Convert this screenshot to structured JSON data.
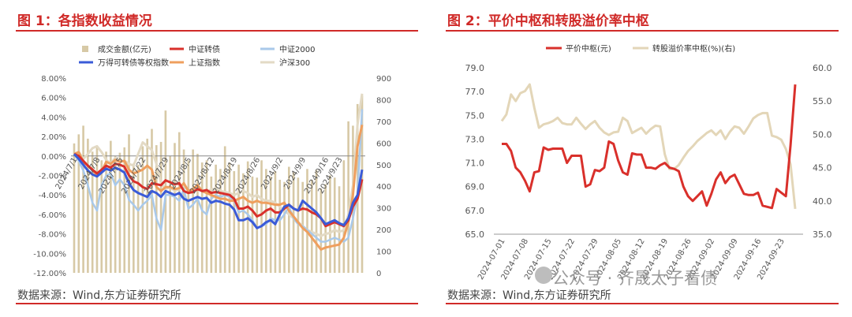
{
  "watermark": "公众号 · 齐晟太子看债",
  "panels": [
    {
      "title": "图 1：各指数收益情况",
      "source": "数据来源：Wind,东方证券研究所"
    },
    {
      "title": "图 2：平价中枢和转股溢价率中枢",
      "source": "数据来源：Wind,东方证券研究所"
    }
  ],
  "chart_data": [
    {
      "type": "bar+line",
      "title": "图 1：各指数收益情况",
      "y_left_ticks": [
        "8.00%",
        "6.00%",
        "4.00%",
        "2.00%",
        "0.00%",
        "-2.00%",
        "-4.00%",
        "-6.00%",
        "-8.00%",
        "-10.00%",
        "-12.00%"
      ],
      "y_right_ticks": [
        "900",
        "800",
        "700",
        "600",
        "500",
        "400",
        "300",
        "200",
        "100",
        "0"
      ],
      "ylim_left": [
        -12,
        8
      ],
      "ylim_right": [
        0,
        900
      ],
      "x_tick_labels": [
        "2024/7/1",
        "2024/7/8",
        "2024/7/15",
        "2024/7/22",
        "2024/7/29",
        "2024/8/5",
        "2024/8/12",
        "2024/8/19",
        "2024/8/26",
        "2024/9/2",
        "2024/9/9",
        "2024/9/16",
        "2024/9/23"
      ],
      "dates": [
        "7/1",
        "7/2",
        "7/3",
        "7/4",
        "7/5",
        "7/8",
        "7/9",
        "7/10",
        "7/11",
        "7/12",
        "7/15",
        "7/16",
        "7/17",
        "7/18",
        "7/19",
        "7/22",
        "7/23",
        "7/24",
        "7/25",
        "7/26",
        "7/29",
        "7/30",
        "7/31",
        "8/1",
        "8/2",
        "8/5",
        "8/6",
        "8/7",
        "8/8",
        "8/9",
        "8/12",
        "8/13",
        "8/14",
        "8/15",
        "8/16",
        "8/19",
        "8/20",
        "8/21",
        "8/22",
        "8/23",
        "8/26",
        "8/27",
        "8/28",
        "8/29",
        "8/30",
        "9/2",
        "9/3",
        "9/4",
        "9/5",
        "9/6",
        "9/9",
        "9/10",
        "9/11",
        "9/12",
        "9/13",
        "9/18",
        "9/19",
        "9/20",
        "9/23",
        "9/24",
        "9/25",
        "9/26",
        "9/27",
        "9/30"
      ],
      "bars": {
        "name": "成交金额(亿元)",
        "values": [
          598,
          640,
          680,
          620,
          560,
          580,
          520,
          560,
          610,
          540,
          555,
          580,
          640,
          505,
          500,
          585,
          620,
          665,
          590,
          605,
          750,
          540,
          600,
          650,
          570,
          520,
          570,
          550,
          510,
          520,
          445,
          500,
          480,
          585,
          510,
          470,
          500,
          460,
          515,
          445,
          440,
          520,
          480,
          445,
          470,
          430,
          420,
          490,
          465,
          440,
          420,
          480,
          430,
          475,
          390,
          410,
          450,
          440,
          400,
          520,
          700,
          680,
          780,
          820
        ]
      },
      "series": [
        {
          "name": "中证转债",
          "axis": "left",
          "values": [
            0.2,
            0.0,
            -0.5,
            -1.0,
            -1.4,
            -1.8,
            -1.4,
            -1.0,
            -1.2,
            -0.8,
            -0.9,
            -1.1,
            -2.0,
            -2.6,
            -2.8,
            -3.2,
            -3.4,
            -2.8,
            -2.9,
            -3.0,
            -2.5,
            -2.7,
            -2.9,
            -2.8,
            -3.6,
            -3.8,
            -3.7,
            -3.4,
            -3.6,
            -3.5,
            -3.8,
            -3.7,
            -3.8,
            -3.9,
            -4.0,
            -4.4,
            -5.4,
            -5.4,
            -5.2,
            -5.6,
            -6.2,
            -6.0,
            -5.6,
            -5.4,
            -5.8,
            -5.8,
            -5.4,
            -5.0,
            -5.4,
            -5.6,
            -5.4,
            -5.5,
            -5.8,
            -6.0,
            -6.4,
            -7.2,
            -7.0,
            -6.8,
            -7.0,
            -7.2,
            -6.6,
            -5.2,
            -4.4,
            -2.4
          ]
        },
        {
          "name": "中证2000",
          "axis": "left",
          "values": [
            0.2,
            -0.5,
            -1.5,
            -3.0,
            -4.8,
            -5.6,
            -3.0,
            -2.0,
            -1.8,
            -3.0,
            -2.4,
            -3.0,
            -4.5,
            -5.0,
            -5.6,
            -5.0,
            -4.6,
            -4.0,
            -6.4,
            -7.6,
            -4.0,
            -4.0,
            -4.2,
            -4.6,
            -3.4,
            -5.4,
            -5.0,
            -4.4,
            -5.6,
            -6.0,
            -4.4,
            -4.0,
            -4.2,
            -4.0,
            -4.2,
            -4.6,
            -5.8,
            -5.6,
            -6.0,
            -6.6,
            -7.4,
            -7.2,
            -7.0,
            -6.4,
            -6.6,
            -6.6,
            -6.0,
            -5.2,
            -6.4,
            -7.0,
            -7.2,
            -7.6,
            -8.0,
            -8.4,
            -8.8,
            -8.8,
            -8.6,
            -8.4,
            -8.6,
            -8.8,
            -8.4,
            -6.4,
            -4.0,
            4.8
          ]
        },
        {
          "name": "万得可转债等权指数",
          "axis": "left",
          "values": [
            0.2,
            -0.3,
            -0.9,
            -1.5,
            -1.9,
            -2.1,
            -1.7,
            -1.3,
            -1.5,
            -1.2,
            -1.4,
            -1.7,
            -2.8,
            -3.5,
            -3.8,
            -4.0,
            -4.2,
            -3.6,
            -3.8,
            -4.2,
            -3.6,
            -3.8,
            -4.0,
            -3.8,
            -4.4,
            -4.6,
            -4.4,
            -4.2,
            -4.4,
            -4.3,
            -4.8,
            -4.6,
            -4.7,
            -4.9,
            -5.0,
            -5.5,
            -6.6,
            -6.6,
            -6.4,
            -6.8,
            -7.4,
            -7.2,
            -6.8,
            -6.6,
            -7.0,
            -6.0,
            -5.2,
            -5.0,
            -5.4,
            -5.6,
            -4.6,
            -5.0,
            -5.4,
            -5.8,
            -6.4,
            -7.0,
            -6.8,
            -6.6,
            -6.9,
            -7.1,
            -6.4,
            -4.8,
            -4.0,
            -1.4
          ]
        },
        {
          "name": "上证指数",
          "axis": "left",
          "values": [
            0.2,
            0.4,
            -0.6,
            -1.0,
            -1.4,
            -2.0,
            -1.6,
            -0.6,
            -0.8,
            -0.4,
            -0.6,
            -0.5,
            -1.4,
            -1.8,
            -1.6,
            -1.4,
            -1.0,
            -1.4,
            -3.2,
            -3.6,
            -3.2,
            -3.2,
            -3.4,
            -3.3,
            -2.8,
            -3.6,
            -3.4,
            -3.0,
            -3.6,
            -3.8,
            -4.0,
            -4.2,
            -4.4,
            -4.4,
            -4.6,
            -4.6,
            -4.4,
            -4.2,
            -4.6,
            -4.8,
            -4.6,
            -4.8,
            -4.8,
            -4.9,
            -5.0,
            -5.0,
            -4.8,
            -5.6,
            -6.2,
            -6.8,
            -7.4,
            -7.8,
            -8.4,
            -9.0,
            -9.6,
            -9.4,
            -9.3,
            -9.2,
            -9.1,
            -8.4,
            -6.8,
            -4.0,
            1.0,
            3.2
          ]
        },
        {
          "name": "沪深300",
          "axis": "left",
          "values": [
            0.2,
            0.4,
            -0.3,
            0.2,
            0.8,
            1.0,
            0.4,
            -0.4,
            -0.8,
            -0.2,
            -0.6,
            -0.5,
            -0.8,
            -1.0,
            0.2,
            1.4,
            1.0,
            0.6,
            -0.8,
            -2.8,
            -3.4,
            -3.2,
            -3.6,
            -3.4,
            -3.0,
            -3.6,
            -3.4,
            -3.0,
            -3.6,
            -3.8,
            -3.4,
            -3.4,
            -3.6,
            -3.7,
            -3.8,
            -4.0,
            -3.8,
            -3.6,
            -3.8,
            -4.2,
            -4.0,
            -4.4,
            -4.6,
            -4.6,
            -4.8,
            -5.2,
            -5.6,
            -6.0,
            -6.4,
            -6.8,
            -7.2,
            -7.6,
            -7.8,
            -8.0,
            -8.2,
            -8.0,
            -7.9,
            -7.6,
            -7.8,
            -7.6,
            -6.0,
            -3.0,
            3.2,
            6.4
          ]
        }
      ],
      "colors": {
        "成交金额(亿元)": "#d7c9a6",
        "中证转债": "#d9302b",
        "中证2000": "#a9c9ea",
        "万得可转债等权指数": "#3a5bd8",
        "上证指数": "#ef9f5e",
        "沪深300": "#e3dac5"
      },
      "grid": false
    },
    {
      "type": "line",
      "title": "图 2：平价中枢和转股溢价率中枢",
      "y_left_ticks": [
        "79.0",
        "77.0",
        "75.0",
        "73.0",
        "71.0",
        "69.0",
        "67.0",
        "65.0"
      ],
      "y_right_ticks": [
        "60.0",
        "55.0",
        "50.0",
        "45.0",
        "40.0",
        "35.0"
      ],
      "ylim_left": [
        65,
        79
      ],
      "ylim_right": [
        35,
        60
      ],
      "x_tick_labels": [
        "2024-07-01",
        "2024-07-08",
        "2024-07-15",
        "2024-07-22",
        "2024-07-29",
        "2024-08-05",
        "2024-08-12",
        "2024-08-19",
        "2024-08-26",
        "2024-09-02",
        "2024-09-09",
        "2024-09-16",
        "2024-09-23"
      ],
      "series": [
        {
          "name": "平价中枢(元)",
          "axis": "left",
          "values": [
            72.6,
            72.6,
            72.0,
            70.6,
            70.2,
            69.5,
            68.6,
            70.2,
            70.3,
            72.3,
            72.1,
            72.2,
            72.2,
            72.2,
            71.0,
            71.6,
            71.6,
            71.6,
            69.0,
            69.2,
            70.4,
            70.3,
            70.6,
            72.8,
            72.6,
            71.2,
            70.2,
            70.0,
            71.8,
            71.7,
            71.7,
            70.6,
            70.6,
            70.5,
            70.8,
            71.0,
            70.6,
            70.5,
            70.3,
            69.0,
            68.2,
            67.8,
            68.2,
            68.6,
            67.4,
            68.4,
            69.6,
            70.2,
            69.3,
            69.8,
            70.0,
            69.2,
            68.4,
            68.3,
            68.3,
            68.5,
            67.4,
            67.3,
            67.2,
            68.8,
            68.5,
            68.2,
            72.5,
            77.6
          ]
        },
        {
          "name": "转股溢价率中枢(%)(右)",
          "axis": "right",
          "values": [
            52.0,
            53.0,
            56.0,
            55.0,
            56.2,
            56.5,
            57.5,
            54.0,
            51.0,
            51.5,
            51.7,
            52.0,
            52.5,
            51.7,
            51.5,
            51.5,
            52.5,
            51.6,
            50.8,
            51.5,
            52.0,
            51.0,
            50.3,
            49.9,
            50.3,
            50.4,
            52.5,
            52.0,
            50.2,
            50.6,
            51.0,
            50.1,
            50.8,
            51.3,
            51.2,
            47.0,
            44.8,
            44.8,
            45.4,
            46.5,
            47.5,
            48.2,
            49.0,
            49.6,
            50.2,
            50.6,
            49.9,
            50.6,
            49.3,
            50.4,
            51.2,
            51.0,
            50.1,
            51.2,
            52.4,
            52.9,
            53.2,
            53.2,
            49.8,
            49.6,
            49.2,
            47.8,
            45.5,
            38.8
          ]
        }
      ],
      "colors": {
        "平价中枢(元)": "#d9302b",
        "转股溢价率中枢(%)(右)": "#e3d6b8"
      },
      "grid": false
    }
  ]
}
